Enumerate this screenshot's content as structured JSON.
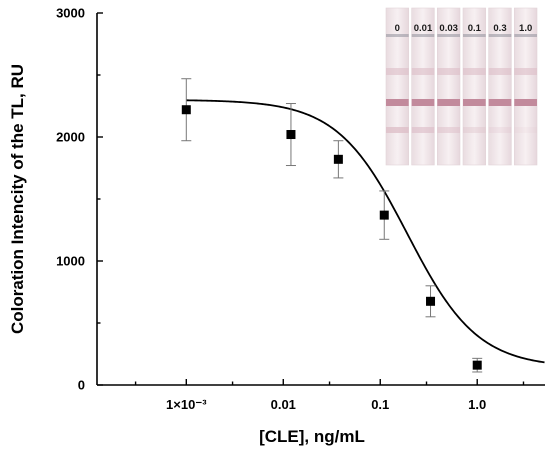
{
  "chart_data": {
    "type": "scatter",
    "xscale": "log",
    "xlim": [
      0.00012,
      5
    ],
    "ylim": [
      0,
      3000
    ],
    "xlabel": "[CLE], ng/mL",
    "ylabel": "Coloration Intencity of the TL, RU",
    "x_ticks": [
      {
        "value": 0.001,
        "label": "1×10⁻³"
      },
      {
        "value": 0.01,
        "label": "0.01"
      },
      {
        "value": 0.1,
        "label": "0.1"
      },
      {
        "value": 1.0,
        "label": "1.0"
      }
    ],
    "y_ticks": [
      {
        "value": 0,
        "label": "0"
      },
      {
        "value": 1000,
        "label": "1000"
      },
      {
        "value": 2000,
        "label": "2000"
      },
      {
        "value": 3000,
        "label": "3000"
      }
    ],
    "points": [
      {
        "x": 0.001,
        "y": 2220,
        "err": 250
      },
      {
        "x": 0.012,
        "y": 2020,
        "err": 250
      },
      {
        "x": 0.037,
        "y": 1820,
        "err": 150
      },
      {
        "x": 0.11,
        "y": 1370,
        "err": 195
      },
      {
        "x": 0.33,
        "y": 675,
        "err": 125
      },
      {
        "x": 1.0,
        "y": 160,
        "err": 55
      }
    ],
    "fit": {
      "model": "4PL",
      "top": 2300,
      "bottom": 140,
      "ic50": 0.19,
      "hill": 1.2
    },
    "inset": {
      "type": "test-strip-photo",
      "concentrations": [
        "0",
        "0.01",
        "0.03",
        "0.1",
        "0.3",
        "1.0"
      ]
    }
  },
  "colors": {
    "strip_background": "#f1e8ea",
    "control_line": "#c28a9c",
    "test_line": "#dcbcc6"
  }
}
